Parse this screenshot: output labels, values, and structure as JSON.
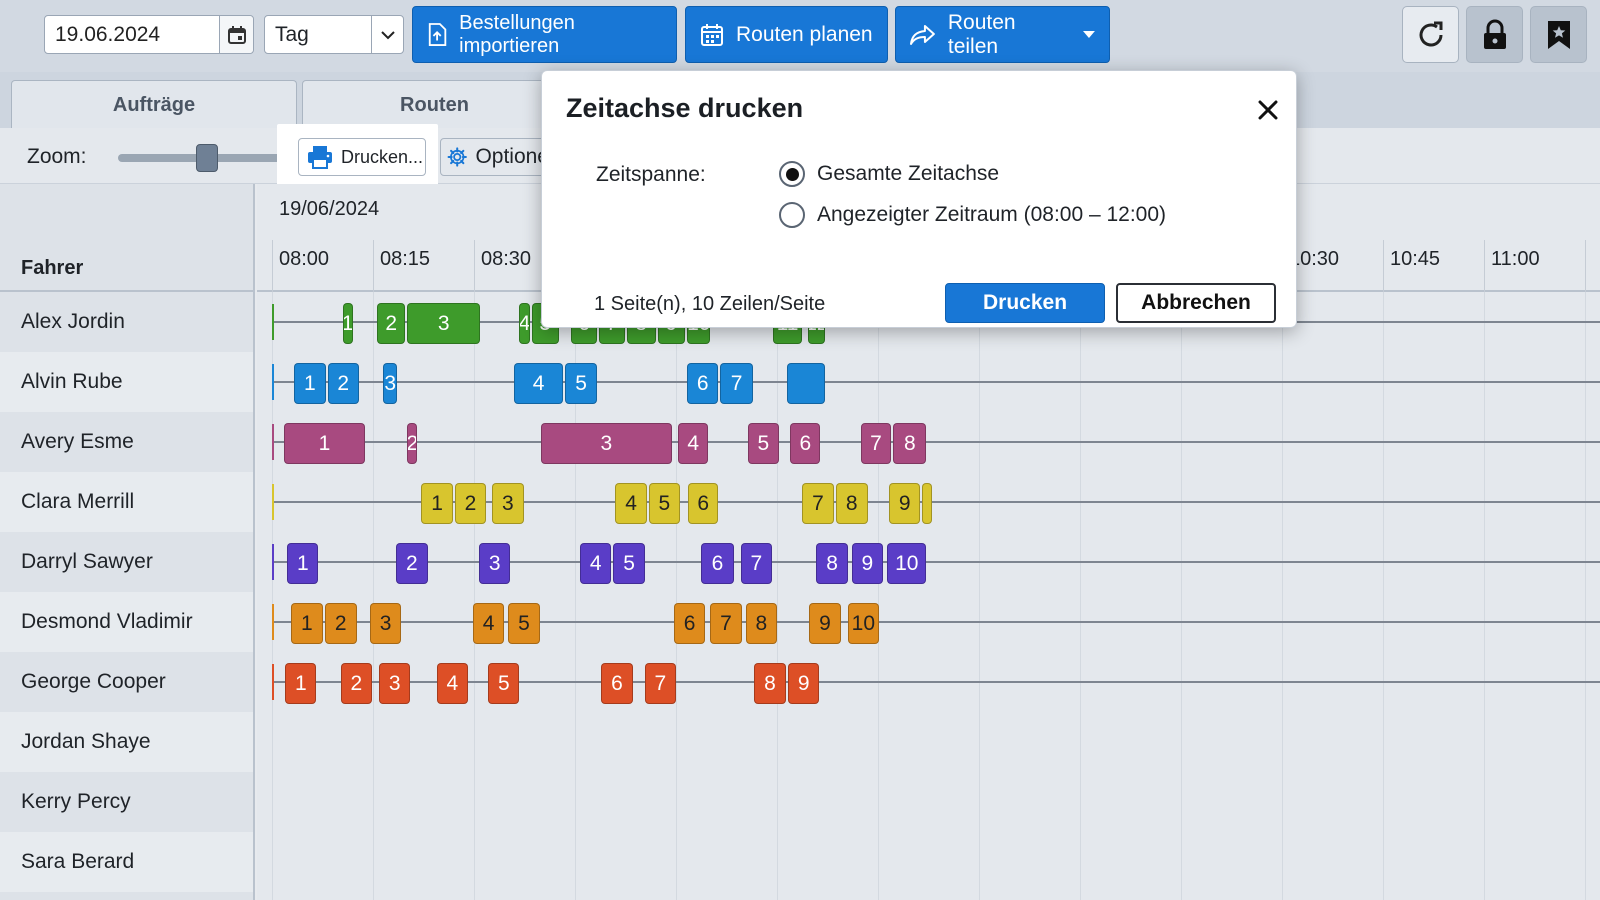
{
  "toolbar": {
    "date_value": "19.06.2024",
    "view_value": "Tag",
    "import_label": "Bestellungen importieren",
    "plan_label": "Routen planen",
    "share_label": "Routen teilen",
    "accent": "#1877d6"
  },
  "tabs": [
    {
      "label": "Aufträge"
    },
    {
      "label": "Routen"
    }
  ],
  "zoom": {
    "label": "Zoom:",
    "level": 0.48,
    "print_label": "Drucken...",
    "options_label": "Optione"
  },
  "timeline": {
    "date": "19/06/2024",
    "driver_header": "Fahrer",
    "ticks": [
      "08:00",
      "08:15",
      "08:30",
      "",
      "",
      "",
      "",
      "",
      "",
      "",
      "10:30",
      "10:45",
      "11:00",
      ""
    ]
  },
  "drivers": [
    {
      "name": "Alex Jordin",
      "color": "#3e9b2b",
      "stops": [
        {
          "label": "1",
          "s": 0.7,
          "e": 0.82
        },
        {
          "label": "2",
          "s": 1.04,
          "e": 1.34
        },
        {
          "label": "3",
          "s": 1.34,
          "e": 2.08
        },
        {
          "label": "4",
          "s": 2.45,
          "e": 2.57
        },
        {
          "label": "5",
          "s": 2.57,
          "e": 2.86
        },
        {
          "label": "6",
          "s": 2.96,
          "e": 3.24
        },
        {
          "label": "7",
          "s": 3.24,
          "e": 3.51
        },
        {
          "label": "8",
          "s": 3.51,
          "e": 3.82
        },
        {
          "label": "9",
          "s": 3.82,
          "e": 4.11
        },
        {
          "label": "10",
          "s": 4.11,
          "e": 4.36
        },
        {
          "label": "11",
          "s": 4.96,
          "e": 5.27
        },
        {
          "label": "12",
          "s": 5.31,
          "e": 5.5
        }
      ]
    },
    {
      "name": "Alvin Rube",
      "color": "#1a86d6",
      "stops": [
        {
          "label": "1",
          "s": 0.22,
          "e": 0.55
        },
        {
          "label": "2",
          "s": 0.55,
          "e": 0.88
        },
        {
          "label": "3",
          "s": 1.1,
          "e": 1.26
        },
        {
          "label": "4",
          "s": 2.4,
          "e": 2.9
        },
        {
          "label": "5",
          "s": 2.9,
          "e": 3.24
        },
        {
          "label": "6",
          "s": 4.11,
          "e": 4.44
        },
        {
          "label": "7",
          "s": 4.44,
          "e": 4.78
        },
        {
          "label": "",
          "s": 5.1,
          "e": 5.5
        }
      ]
    },
    {
      "name": "Avery Esme",
      "color": "#a84a80",
      "stops": [
        {
          "label": "1",
          "s": 0.12,
          "e": 0.94
        },
        {
          "label": "2",
          "s": 1.34,
          "e": 1.41
        },
        {
          "label": "3",
          "s": 2.66,
          "e": 3.98
        },
        {
          "label": "4",
          "s": 4.02,
          "e": 4.34
        },
        {
          "label": "5",
          "s": 4.71,
          "e": 5.04
        },
        {
          "label": "6",
          "s": 5.13,
          "e": 5.45
        },
        {
          "label": "7",
          "s": 5.83,
          "e": 6.15
        },
        {
          "label": "8",
          "s": 6.15,
          "e": 6.5
        }
      ]
    },
    {
      "name": "Clara Merrill",
      "color": "#d8c52e",
      "dark": true,
      "stops": [
        {
          "label": "1",
          "s": 1.48,
          "e": 1.81
        },
        {
          "label": "2",
          "s": 1.81,
          "e": 2.14
        },
        {
          "label": "3",
          "s": 2.18,
          "e": 2.51
        },
        {
          "label": "4",
          "s": 3.4,
          "e": 3.73
        },
        {
          "label": "5",
          "s": 3.73,
          "e": 4.06
        },
        {
          "label": "6",
          "s": 4.12,
          "e": 4.44
        },
        {
          "label": "7",
          "s": 5.25,
          "e": 5.58
        },
        {
          "label": "8",
          "s": 5.58,
          "e": 5.92
        },
        {
          "label": "9",
          "s": 6.11,
          "e": 6.44
        },
        {
          "label": "",
          "s": 6.44,
          "e": 6.5
        }
      ]
    },
    {
      "name": "Darryl Sawyer",
      "color": "#5a3dc7",
      "stops": [
        {
          "label": "1",
          "s": 0.15,
          "e": 0.48
        },
        {
          "label": "2",
          "s": 1.23,
          "e": 1.56
        },
        {
          "label": "3",
          "s": 2.05,
          "e": 2.38
        },
        {
          "label": "4",
          "s": 3.05,
          "e": 3.38
        },
        {
          "label": "5",
          "s": 3.38,
          "e": 3.71
        },
        {
          "label": "6",
          "s": 4.25,
          "e": 4.59
        },
        {
          "label": "7",
          "s": 4.64,
          "e": 4.97
        },
        {
          "label": "8",
          "s": 5.39,
          "e": 5.72
        },
        {
          "label": "9",
          "s": 5.74,
          "e": 6.07
        },
        {
          "label": "10",
          "s": 6.09,
          "e": 6.5
        }
      ]
    },
    {
      "name": "Desmond Vladimir",
      "color": "#de8b1c",
      "dark": true,
      "stops": [
        {
          "label": "1",
          "s": 0.19,
          "e": 0.52
        },
        {
          "label": "2",
          "s": 0.52,
          "e": 0.86
        },
        {
          "label": "3",
          "s": 0.97,
          "e": 1.3
        },
        {
          "label": "4",
          "s": 1.99,
          "e": 2.32
        },
        {
          "label": "5",
          "s": 2.34,
          "e": 2.67
        },
        {
          "label": "6",
          "s": 3.98,
          "e": 4.31
        },
        {
          "label": "7",
          "s": 4.34,
          "e": 4.67
        },
        {
          "label": "8",
          "s": 4.69,
          "e": 5.02
        },
        {
          "label": "9",
          "s": 5.32,
          "e": 5.65
        },
        {
          "label": "10",
          "s": 5.7,
          "e": 6.03
        }
      ]
    },
    {
      "name": "George Cooper",
      "color": "#dd4f26",
      "stops": [
        {
          "label": "1",
          "s": 0.13,
          "e": 0.46
        },
        {
          "label": "2",
          "s": 0.68,
          "e": 1.01
        },
        {
          "label": "3",
          "s": 1.06,
          "e": 1.39
        },
        {
          "label": "4",
          "s": 1.63,
          "e": 1.96
        },
        {
          "label": "5",
          "s": 2.14,
          "e": 2.47
        },
        {
          "label": "6",
          "s": 3.26,
          "e": 3.59
        },
        {
          "label": "7",
          "s": 3.69,
          "e": 4.02
        },
        {
          "label": "8",
          "s": 4.77,
          "e": 5.11
        },
        {
          "label": "9",
          "s": 5.11,
          "e": 5.44
        }
      ]
    },
    {
      "name": "Jordan Shaye",
      "color": "",
      "stops": []
    },
    {
      "name": "Kerry Percy",
      "color": "",
      "stops": []
    },
    {
      "name": "Sara Berard",
      "color": "",
      "stops": []
    }
  ],
  "dialog": {
    "title": "Zeitachse drucken",
    "span_label": "Zeitspanne:",
    "option_all": "Gesamte Zeitachse",
    "option_visible": "Angezeigter Zeitraum (08:00 – 12:00)",
    "selected": "all",
    "pages_info": "1 Seite(n), 10 Zeilen/Seite",
    "print_label": "Drucken",
    "cancel_label": "Abbrechen"
  }
}
